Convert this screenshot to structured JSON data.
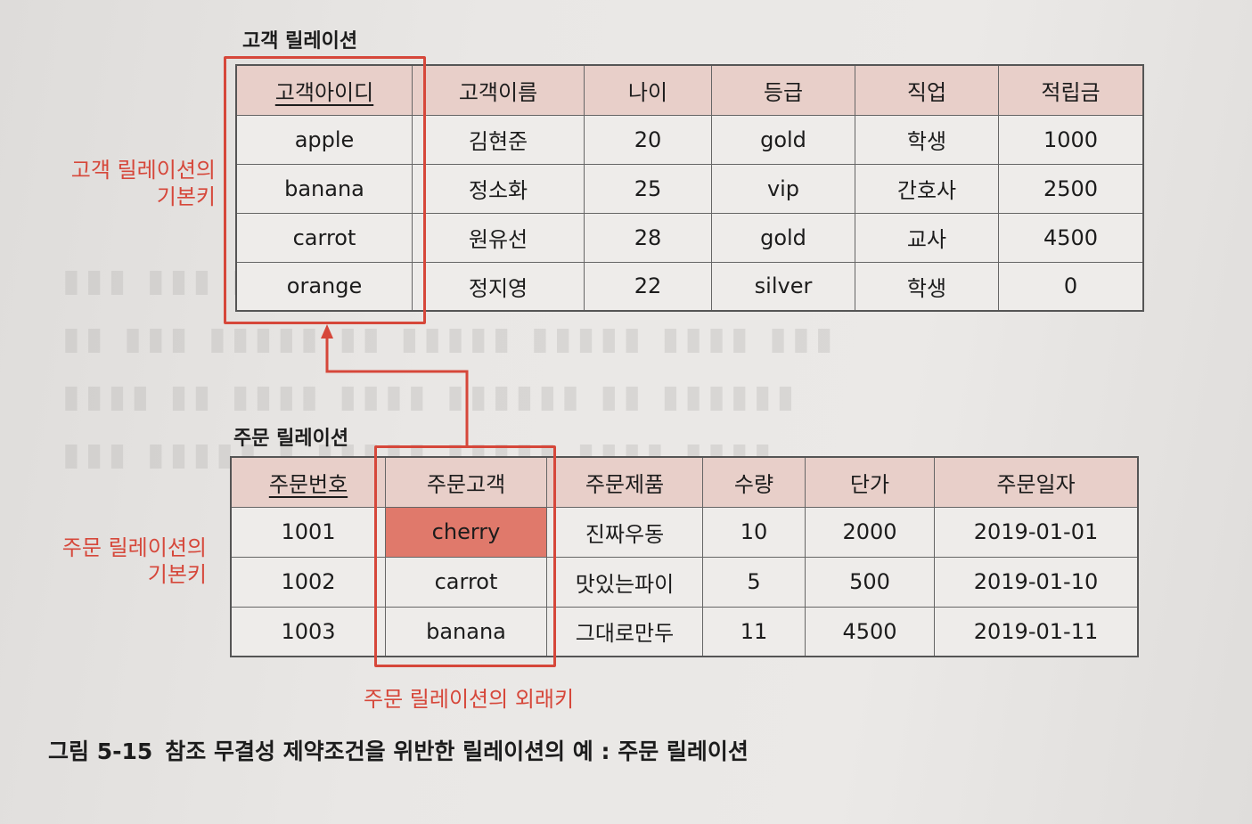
{
  "customer": {
    "heading": "고객 릴레이션",
    "columns": [
      "고객아이디",
      "고객이름",
      "나이",
      "등급",
      "직업",
      "적립금"
    ],
    "rows": [
      [
        "apple",
        "김현준",
        "20",
        "gold",
        "학생",
        "1000"
      ],
      [
        "banana",
        "정소화",
        "25",
        "vip",
        "간호사",
        "2500"
      ],
      [
        "carrot",
        "원유선",
        "28",
        "gold",
        "교사",
        "4500"
      ],
      [
        "orange",
        "정지영",
        "22",
        "silver",
        "학생",
        "0"
      ]
    ],
    "pk_note_line1": "고객 릴레이션의",
    "pk_note_line2": "기본키"
  },
  "order": {
    "heading": "주문 릴레이션",
    "columns": [
      "주문번호",
      "주문고객",
      "주문제품",
      "수량",
      "단가",
      "주문일자"
    ],
    "rows": [
      [
        "1001",
        "cherry",
        "진짜우동",
        "10",
        "2000",
        "2019-01-01"
      ],
      [
        "1002",
        "carrot",
        "맛있는파이",
        "5",
        "500",
        "2019-01-10"
      ],
      [
        "1003",
        "banana",
        "그대로만두",
        "11",
        "4500",
        "2019-01-11"
      ]
    ],
    "pk_note_line1": "주문 릴레이션의",
    "pk_note_line2": "기본키",
    "fk_note": "주문 릴레이션의 외래키",
    "violating_value": "cherry"
  },
  "caption": {
    "number": "그림 5-15",
    "text": "참조 무결성 제약조건을 위반한 릴레이션의 예 : 주문 릴레이션"
  },
  "colors": {
    "accent_red": "#d6473a",
    "header_pink": "#e8cfc9",
    "violation_fill": "#e0796b"
  }
}
